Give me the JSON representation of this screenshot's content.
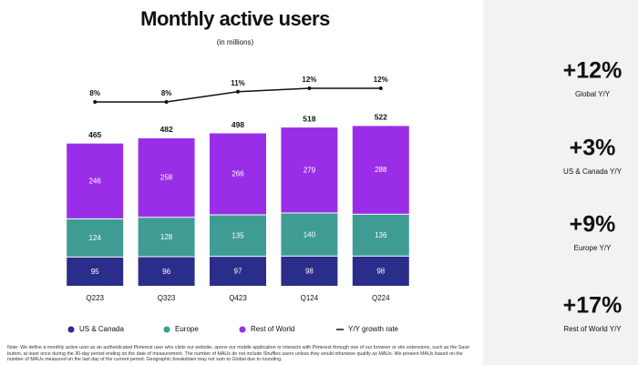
{
  "chart_data": {
    "type": "stacked-bar",
    "title": "Monthly active users",
    "subtitle": "(in millions)",
    "categories": [
      "Q223",
      "Q323",
      "Q423",
      "Q124",
      "Q224"
    ],
    "series": [
      {
        "name": "US & Canada",
        "color": "#2b2d8a",
        "values": [
          95,
          96,
          97,
          98,
          98
        ]
      },
      {
        "name": "Europe",
        "color": "#3f9c95",
        "values": [
          124,
          128,
          135,
          140,
          136
        ]
      },
      {
        "name": "Rest of World",
        "color": "#9a2ee8",
        "values": [
          246,
          258,
          266,
          279,
          288
        ]
      }
    ],
    "totals": [
      465,
      482,
      498,
      518,
      522
    ],
    "growth": {
      "name": "Y/Y growth rate",
      "color": "#111111",
      "values": [
        8,
        8,
        11,
        12,
        12
      ],
      "value_labels": [
        "8%",
        "8%",
        "11%",
        "12%",
        "12%"
      ]
    },
    "ylim": [
      0,
      600
    ],
    "y2lim": [
      0,
      20
    ]
  },
  "highlights": [
    {
      "value": "+12%",
      "label": "Global Y/Y"
    },
    {
      "value": "+3%",
      "label": "US & Canada Y/Y"
    },
    {
      "value": "+9%",
      "label": "Europe Y/Y"
    },
    {
      "value": "+17%",
      "label": "Rest of World Y/Y"
    }
  ],
  "footnote": "Note: We define a monthly active user as an authenticated Pinterest user who visits our website, opens our mobile application or interacts with Pinterest through one of our browser or site extensions, such as the Save button, at least once during the 30-day period ending on the date of measurement. The number of MAUs do not include Shuffles users unless they would otherwise qualify as MAUs. We present MAUs based on the number of MAUs measured on the last day of the current period. Geographic breakdown may not sum to Global due to rounding."
}
